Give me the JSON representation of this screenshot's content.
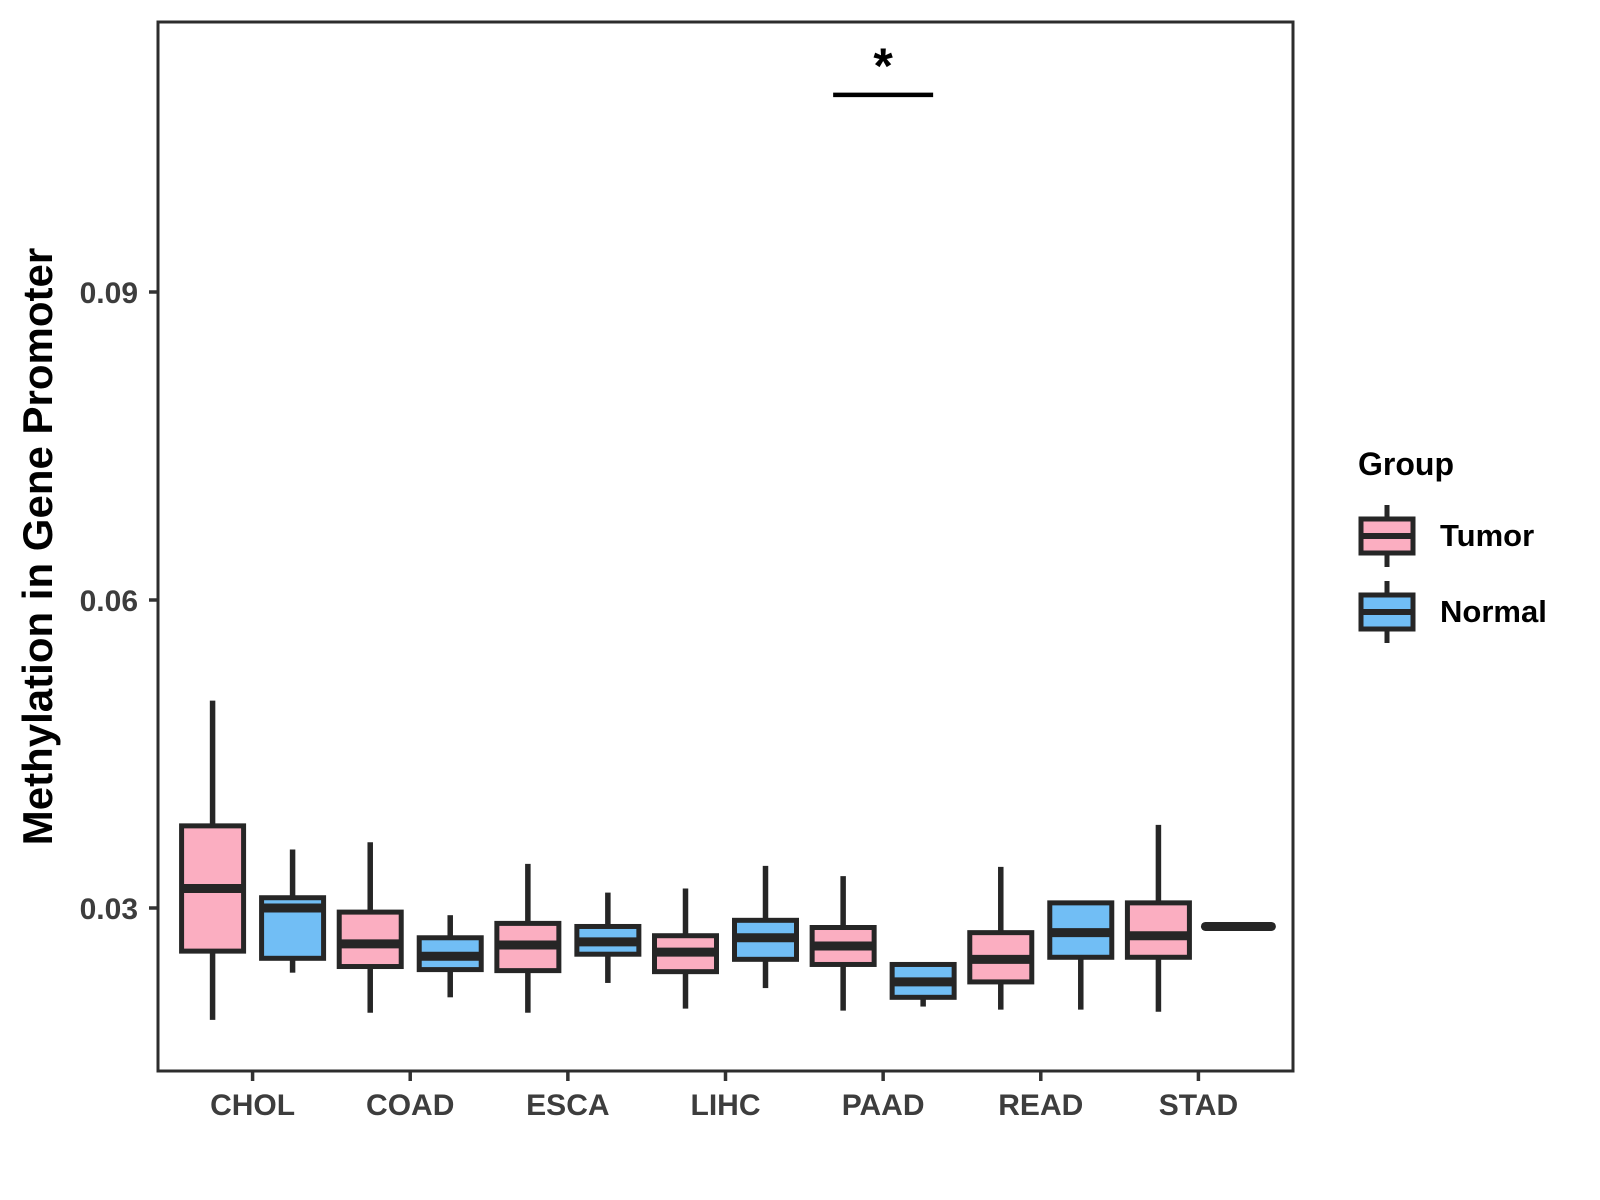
{
  "chart_data": {
    "type": "boxplot",
    "title": "",
    "xlabel": "",
    "ylabel": "Methylation in Gene Promoter",
    "categories": [
      "CHOL",
      "COAD",
      "ESCA",
      "LIHC",
      "PAAD",
      "READ",
      "STAD"
    ],
    "y_axis": {
      "tick_values": [
        0.03,
        0.06,
        0.09
      ],
      "tick_labels": [
        "0.03",
        "0.06",
        "0.09"
      ],
      "range": [
        0.014,
        0.116
      ],
      "grid": false
    },
    "legend": {
      "title": "Group",
      "position": "right",
      "entries": [
        {
          "label": "Tumor",
          "color": "#FBAEC1"
        },
        {
          "label": "Normal",
          "color": "#71BEF5"
        }
      ]
    },
    "style": {
      "stroke_color": "#262626",
      "panel_border_color": "#2d2d2d",
      "axis_text_color": "#3d3d3d"
    },
    "series": [
      {
        "name": "Tumor",
        "color": "#FBAEC1",
        "boxes": [
          {
            "category": "CHOL",
            "whisker_low": 0.0191,
            "q1": 0.0258,
            "median": 0.0319,
            "q3": 0.038,
            "whisker_high": 0.0502
          },
          {
            "category": "COAD",
            "whisker_low": 0.0198,
            "q1": 0.0243,
            "median": 0.0265,
            "q3": 0.0296,
            "whisker_high": 0.0364
          },
          {
            "category": "ESCA",
            "whisker_low": 0.0198,
            "q1": 0.0239,
            "median": 0.0264,
            "q3": 0.0285,
            "whisker_high": 0.0343
          },
          {
            "category": "LIHC",
            "whisker_low": 0.0202,
            "q1": 0.0238,
            "median": 0.0257,
            "q3": 0.0273,
            "whisker_high": 0.0319
          },
          {
            "category": "PAAD",
            "whisker_low": 0.02,
            "q1": 0.0245,
            "median": 0.0263,
            "q3": 0.0281,
            "whisker_high": 0.0331
          },
          {
            "category": "READ",
            "whisker_low": 0.0201,
            "q1": 0.0228,
            "median": 0.025,
            "q3": 0.0276,
            "whisker_high": 0.034
          },
          {
            "category": "STAD",
            "whisker_low": 0.0199,
            "q1": 0.0252,
            "median": 0.0273,
            "q3": 0.0305,
            "whisker_high": 0.0381
          }
        ]
      },
      {
        "name": "Normal",
        "color": "#71BEF5",
        "boxes": [
          {
            "category": "CHOL",
            "whisker_low": 0.0237,
            "q1": 0.0251,
            "median": 0.03,
            "q3": 0.031,
            "whisker_high": 0.0357
          },
          {
            "category": "COAD",
            "whisker_low": 0.0213,
            "q1": 0.024,
            "median": 0.0253,
            "q3": 0.0271,
            "whisker_high": 0.0293
          },
          {
            "category": "ESCA",
            "whisker_low": 0.0227,
            "q1": 0.0255,
            "median": 0.0267,
            "q3": 0.0282,
            "whisker_high": 0.0315
          },
          {
            "category": "LIHC",
            "whisker_low": 0.0222,
            "q1": 0.025,
            "median": 0.0271,
            "q3": 0.0288,
            "whisker_high": 0.0341
          },
          {
            "category": "PAAD",
            "whisker_low": 0.0204,
            "q1": 0.0213,
            "median": 0.0228,
            "q3": 0.0245,
            "whisker_high": 0.0247
          },
          {
            "category": "READ",
            "whisker_low": 0.0201,
            "q1": 0.0252,
            "median": 0.0276,
            "q3": 0.0305,
            "whisker_high": 0.0307
          },
          {
            "category": "STAD",
            "single_value": 0.0282
          }
        ]
      }
    ],
    "annotations": [
      {
        "type": "significance-bracket",
        "label": "*",
        "category": "PAAD",
        "line_value": 0.1092,
        "label_value": 0.1125
      }
    ]
  }
}
